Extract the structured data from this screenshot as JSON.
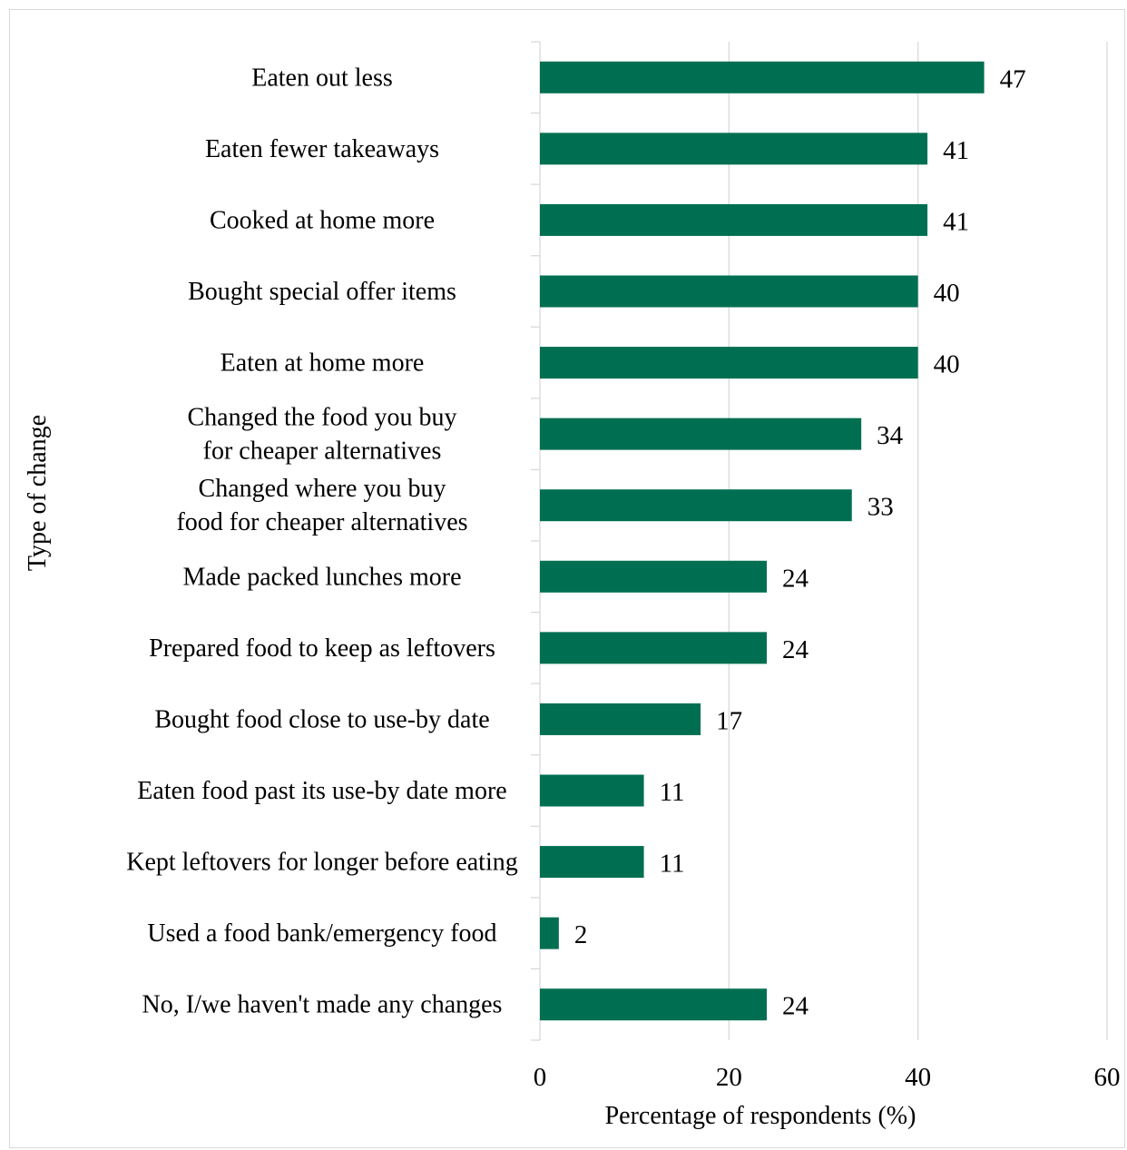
{
  "chart_data": {
    "type": "bar",
    "orientation": "horizontal",
    "categories": [
      [
        "Eaten out less"
      ],
      [
        "Eaten fewer takeaways"
      ],
      [
        "Cooked at home more"
      ],
      [
        "Bought special offer items"
      ],
      [
        "Eaten at home more"
      ],
      [
        "Changed the food you buy",
        "for cheaper alternatives"
      ],
      [
        "Changed where you buy",
        "food for cheaper alternatives"
      ],
      [
        "Made packed lunches more"
      ],
      [
        "Prepared food to keep as leftovers"
      ],
      [
        "Bought food close to use-by date"
      ],
      [
        "Eaten food past its use-by date more"
      ],
      [
        "Kept leftovers for longer before eating"
      ],
      [
        "Used a food bank/emergency food"
      ],
      [
        "No, I/we haven't made any changes"
      ]
    ],
    "values": [
      47,
      41,
      41,
      40,
      40,
      34,
      33,
      24,
      24,
      17,
      11,
      11,
      2,
      24
    ],
    "xlabel": "Percentage of respondents (%)",
    "ylabel": "Type of change",
    "xlim": [
      0,
      60
    ],
    "xticks": [
      0,
      20,
      40,
      60
    ],
    "grid": "vertical gridlines",
    "legend": "none",
    "bar_color": "#006f51"
  }
}
